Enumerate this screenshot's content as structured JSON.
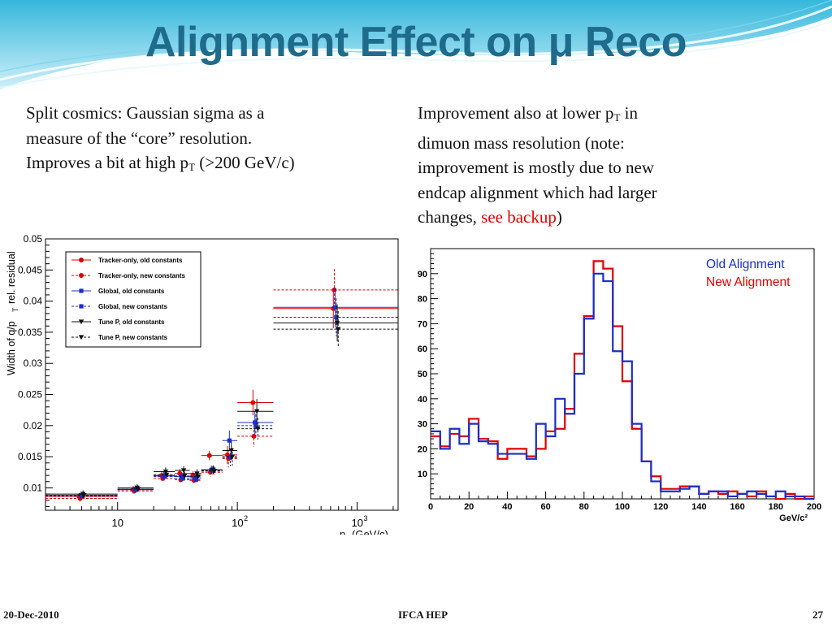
{
  "slide": {
    "title_main": "Alignment Effect on ",
    "title_mu": "μ",
    "title_end": " Reco",
    "left_line1": "Split cosmics: Gaussian sigma as a",
    "left_line2": "measure of the “core” resolution.",
    "left_line3a": "Improves a bit at high p",
    "left_line3sub": "T",
    "left_line3b": " (>200 GeV/c)",
    "right_line1a": "Improvement also at lower p",
    "right_line1sub": "T",
    "right_line1b": " in",
    "right_line2": "dimuon mass resolution (note:",
    "right_line3": "improvement is mostly due to new",
    "right_line4": "endcap alignment which had larger",
    "right_line5a": "changes, ",
    "right_line5link": "see backup",
    "right_line5b": ")"
  },
  "footer": {
    "date": "20-Dec-2010",
    "center": "IFCA HEP",
    "page": "27"
  },
  "colors": {
    "title": "#1f6b8c",
    "red": "#e00000",
    "blue": "#1b2fc8",
    "black": "#111111"
  },
  "chart_data": [
    {
      "type": "scatter",
      "xscale": "log",
      "xlim": [
        2.5,
        2200
      ],
      "ylim": [
        0.0064,
        0.05
      ],
      "ylabel": "Width of q/p_T rel. residual",
      "xlabel": "p_T (GeV/c)",
      "yticks": [
        "0.01",
        "0.015",
        "0.02",
        "0.025",
        "0.03",
        "0.035",
        "0.04",
        "0.045",
        "0.05"
      ],
      "xticks": [
        "10",
        "10^2",
        "10^3"
      ],
      "legend": [
        "Tracker-only, old constants",
        "Tracker-only, new constants",
        "Global, old constants",
        "Global, new constants",
        "Tune P, old constants",
        "Tune P, new constants"
      ],
      "bins": [
        [
          2.5,
          10
        ],
        [
          10,
          20
        ],
        [
          20,
          30
        ],
        [
          30,
          40
        ],
        [
          40,
          50
        ],
        [
          50,
          75
        ],
        [
          75,
          100
        ],
        [
          100,
          200
        ],
        [
          200,
          2200
        ]
      ],
      "series": [
        {
          "name": "Tracker-only, old constants",
          "color": "#e00000",
          "dashed": false,
          "marker": "circle",
          "values": [
            0.0086,
            0.0097,
            0.012,
            0.0123,
            0.012,
            0.0152,
            0.0153,
            0.0237,
            0.0388
          ]
        },
        {
          "name": "Tracker-only, new constants",
          "color": "#e00000",
          "dashed": true,
          "marker": "circle",
          "values": [
            0.0083,
            0.0095,
            0.0115,
            0.0113,
            0.0112,
            0.0125,
            0.0147,
            0.0183,
            0.0418
          ]
        },
        {
          "name": "Global, old constants",
          "color": "#1b2fc8",
          "dashed": false,
          "marker": "square",
          "values": [
            0.0088,
            0.0098,
            0.0119,
            0.0118,
            0.0116,
            0.0129,
            0.0176,
            0.0205,
            0.039
          ]
        },
        {
          "name": "Global, new constants",
          "color": "#1b2fc8",
          "dashed": true,
          "marker": "square",
          "values": [
            0.0087,
            0.0097,
            0.0118,
            0.0115,
            0.0113,
            0.0128,
            0.0149,
            0.02,
            0.0374
          ]
        },
        {
          "name": "Tune P, old constants",
          "color": "#111111",
          "dashed": false,
          "marker": "triangle",
          "values": [
            0.009,
            0.01,
            0.0126,
            0.0128,
            0.0123,
            0.0129,
            0.016,
            0.0223,
            0.0365
          ]
        },
        {
          "name": "Tune P, new constants",
          "color": "#111111",
          "dashed": true,
          "marker": "triangle",
          "values": [
            0.0088,
            0.0098,
            0.0121,
            0.0119,
            0.0118,
            0.0127,
            0.015,
            0.0195,
            0.0355
          ]
        }
      ]
    },
    {
      "type": "histogram",
      "xlim": [
        0,
        200
      ],
      "ylim": [
        0,
        100
      ],
      "xlabel": "GeV/c²",
      "xticks": [
        0,
        20,
        40,
        60,
        80,
        100,
        120,
        140,
        160,
        180,
        200
      ],
      "yticks": [
        10,
        20,
        30,
        40,
        50,
        60,
        70,
        80,
        90
      ],
      "bin_width": 5,
      "series": [
        {
          "name": "Old Alignment",
          "color": "#1b2fc8",
          "values": [
            27,
            20,
            28,
            22,
            30,
            23,
            22,
            18,
            18,
            18,
            16,
            30,
            25,
            40,
            34,
            50,
            72,
            90,
            87,
            59,
            55,
            30,
            15,
            7,
            3,
            3,
            4,
            5,
            2,
            3,
            3,
            1,
            2,
            3,
            2,
            1,
            3,
            1,
            1,
            0
          ]
        },
        {
          "name": "New Alignment",
          "color": "#e00000",
          "values": [
            25,
            21,
            26,
            25,
            32,
            24,
            23,
            16,
            20,
            20,
            17,
            20,
            27,
            28,
            36,
            58,
            73,
            95,
            92,
            69,
            47,
            28,
            15,
            9,
            4,
            4,
            5,
            5,
            2,
            3,
            2,
            3,
            2,
            1,
            3,
            1,
            0,
            2,
            0,
            1
          ]
        }
      ]
    }
  ]
}
